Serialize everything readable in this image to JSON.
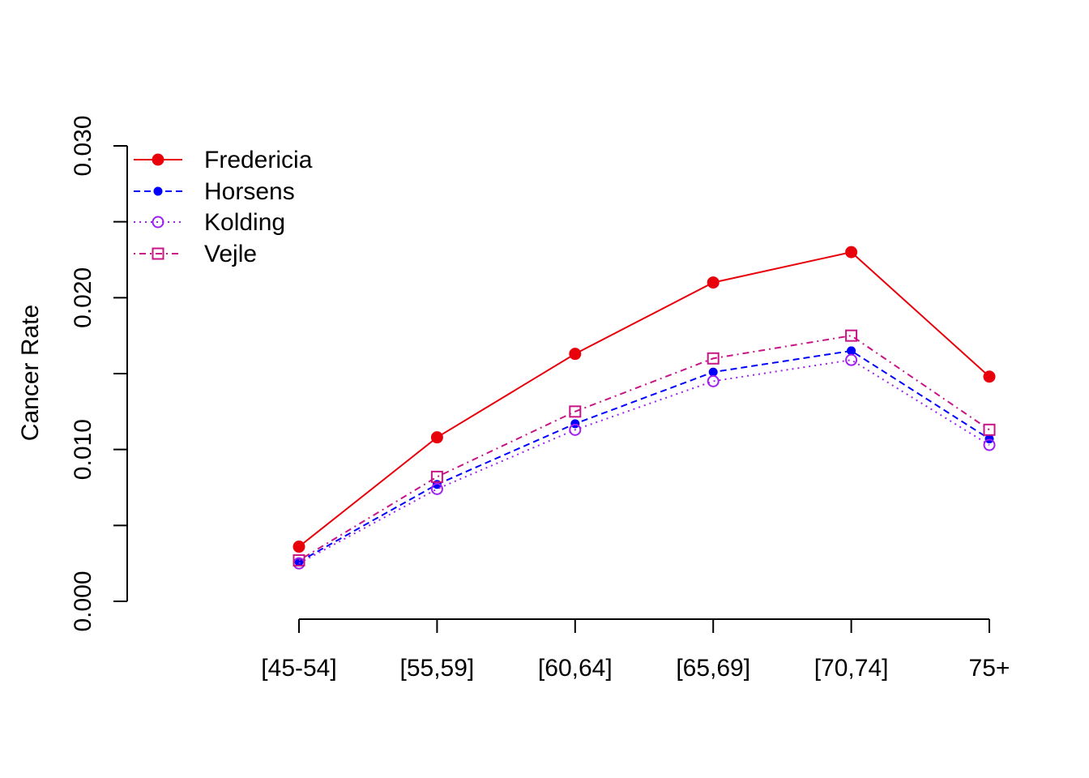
{
  "chart_data": {
    "type": "line",
    "categories": [
      "[45-54]",
      "[55,59]",
      "[60,64]",
      "[65,69]",
      "[70,74]",
      "75+"
    ],
    "ylabel": "Cancer Rate",
    "xlabel": "",
    "ylim": [
      0,
      0.03
    ],
    "yticks": [
      0.0,
      0.005,
      0.01,
      0.015,
      0.02,
      0.025,
      0.03
    ],
    "ytick_labels": [
      "0.000",
      "0.010",
      "0.020",
      "0.030"
    ],
    "ytick_label_values": [
      0.0,
      0.01,
      0.02,
      0.03
    ],
    "grid": false,
    "legend_position": "top-left",
    "series": [
      {
        "name": "Fredericia",
        "values": [
          0.0036,
          0.0108,
          0.0163,
          0.021,
          0.023,
          0.0148
        ],
        "color": "#E8000B",
        "line": "solid",
        "marker": "filled-circle"
      },
      {
        "name": "Horsens",
        "values": [
          0.0026,
          0.0077,
          0.0117,
          0.0151,
          0.0165,
          0.0107
        ],
        "color": "#0000FF",
        "line": "dashed",
        "marker": "small-filled-circle"
      },
      {
        "name": "Kolding",
        "values": [
          0.0025,
          0.0074,
          0.0113,
          0.0145,
          0.0159,
          0.0103
        ],
        "color": "#A020F0",
        "line": "dotted",
        "marker": "open-circle"
      },
      {
        "name": "Vejle",
        "values": [
          0.0027,
          0.0082,
          0.0125,
          0.016,
          0.0175,
          0.0113
        ],
        "color": "#C71585",
        "line": "dashdot",
        "marker": "open-square"
      }
    ]
  }
}
